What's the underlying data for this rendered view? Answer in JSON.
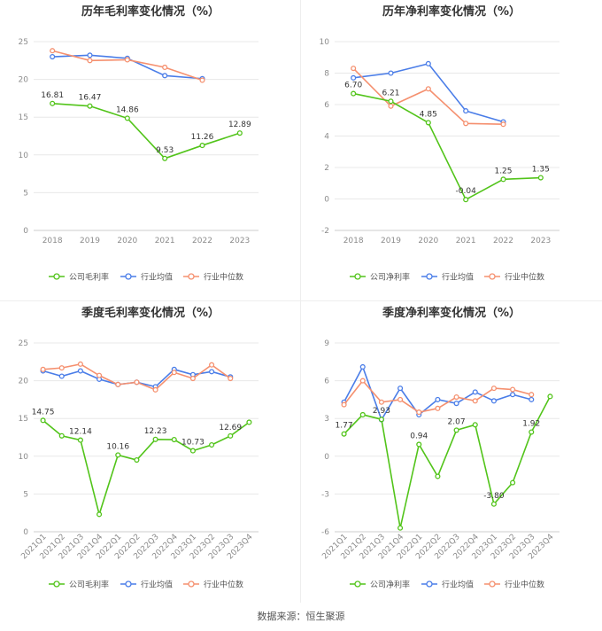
{
  "footer": "数据来源：恒生聚源",
  "chart_data": [
    {
      "type": "line",
      "title": "历年毛利率变化情况（%）",
      "categories": [
        "2018",
        "2019",
        "2020",
        "2021",
        "2022",
        "2023"
      ],
      "ylim": [
        0,
        25
      ],
      "yticks": [
        0,
        5,
        10,
        15,
        20,
        25
      ],
      "rotate_x": false,
      "series": [
        {
          "name": "公司毛利率",
          "color": "#52c41a",
          "values": [
            16.81,
            16.47,
            14.86,
            9.53,
            11.26,
            12.89
          ],
          "labels": [
            "16.81",
            "16.47",
            "14.86",
            "9.53",
            "11.26",
            "12.89"
          ]
        },
        {
          "name": "行业均值",
          "color": "#4a7de8",
          "values": [
            23.0,
            23.2,
            22.8,
            20.5,
            20.1,
            null
          ],
          "labels": []
        },
        {
          "name": "行业中位数",
          "color": "#f5906f",
          "values": [
            23.8,
            22.5,
            22.6,
            21.6,
            19.9,
            null
          ],
          "labels": []
        }
      ]
    },
    {
      "type": "line",
      "title": "历年净利率变化情况（%）",
      "categories": [
        "2018",
        "2019",
        "2020",
        "2021",
        "2022",
        "2023"
      ],
      "ylim": [
        -2,
        10
      ],
      "yticks": [
        -2,
        0,
        2,
        4,
        6,
        8,
        10
      ],
      "rotate_x": false,
      "series": [
        {
          "name": "公司净利率",
          "color": "#52c41a",
          "values": [
            6.7,
            6.21,
            4.85,
            -0.04,
            1.25,
            1.35
          ],
          "labels": [
            "6.70",
            "6.21",
            "4.85",
            "-0.04",
            "1.25",
            "1.35"
          ]
        },
        {
          "name": "行业均值",
          "color": "#4a7de8",
          "values": [
            7.7,
            8.0,
            8.6,
            5.6,
            4.9,
            null
          ],
          "labels": []
        },
        {
          "name": "行业中位数",
          "color": "#f5906f",
          "values": [
            8.3,
            5.9,
            7.0,
            4.8,
            4.75,
            null
          ],
          "labels": []
        }
      ]
    },
    {
      "type": "line",
      "title": "季度毛利率变化情况（%）",
      "categories": [
        "2021Q1",
        "2021Q2",
        "2021Q3",
        "2021Q4",
        "2022Q1",
        "2022Q2",
        "2022Q3",
        "2022Q4",
        "2023Q1",
        "2023Q2",
        "2023Q3",
        "2023Q4"
      ],
      "ylim": [
        0,
        25
      ],
      "yticks": [
        0,
        5,
        10,
        15,
        20,
        25
      ],
      "rotate_x": true,
      "series": [
        {
          "name": "公司毛利率",
          "color": "#52c41a",
          "values": [
            14.75,
            12.7,
            12.14,
            2.3,
            10.16,
            9.5,
            12.23,
            12.2,
            10.73,
            11.5,
            12.69,
            14.5
          ],
          "labels": [
            "14.75",
            null,
            "12.14",
            null,
            "10.16",
            null,
            "12.23",
            null,
            "10.73",
            null,
            "12.69",
            null
          ]
        },
        {
          "name": "行业均值",
          "color": "#4a7de8",
          "values": [
            21.3,
            20.6,
            21.3,
            20.2,
            19.5,
            19.8,
            19.2,
            21.5,
            20.8,
            21.2,
            20.5,
            null
          ],
          "labels": []
        },
        {
          "name": "行业中位数",
          "color": "#f5906f",
          "values": [
            21.5,
            21.7,
            22.2,
            20.7,
            19.5,
            19.8,
            18.8,
            21.1,
            20.3,
            22.1,
            20.3,
            null
          ],
          "labels": []
        }
      ]
    },
    {
      "type": "line",
      "title": "季度净利率变化情况（%）",
      "categories": [
        "2021Q1",
        "2021Q2",
        "2021Q3",
        "2021Q4",
        "2022Q1",
        "2022Q2",
        "2022Q3",
        "2022Q4",
        "2023Q1",
        "2023Q2",
        "2023Q3",
        "2023Q4"
      ],
      "ylim": [
        -6,
        9
      ],
      "yticks": [
        -6,
        -3,
        0,
        3,
        6,
        9
      ],
      "rotate_x": true,
      "series": [
        {
          "name": "公司净利率",
          "color": "#52c41a",
          "values": [
            1.77,
            3.3,
            2.93,
            -5.7,
            0.94,
            -1.6,
            2.07,
            2.5,
            -3.8,
            -2.1,
            1.92,
            4.75
          ],
          "labels": [
            "1.77",
            null,
            "2.93",
            null,
            "0.94",
            null,
            "2.07",
            null,
            "-3.80",
            null,
            "1.92",
            null
          ]
        },
        {
          "name": "行业均值",
          "color": "#4a7de8",
          "values": [
            4.3,
            7.1,
            2.9,
            5.4,
            3.3,
            4.5,
            4.2,
            5.1,
            4.4,
            4.9,
            4.5,
            null
          ],
          "labels": []
        },
        {
          "name": "行业中位数",
          "color": "#f5906f",
          "values": [
            4.1,
            6.0,
            4.3,
            4.5,
            3.5,
            3.8,
            4.7,
            4.4,
            5.4,
            5.3,
            4.9,
            null
          ],
          "labels": []
        }
      ]
    }
  ]
}
